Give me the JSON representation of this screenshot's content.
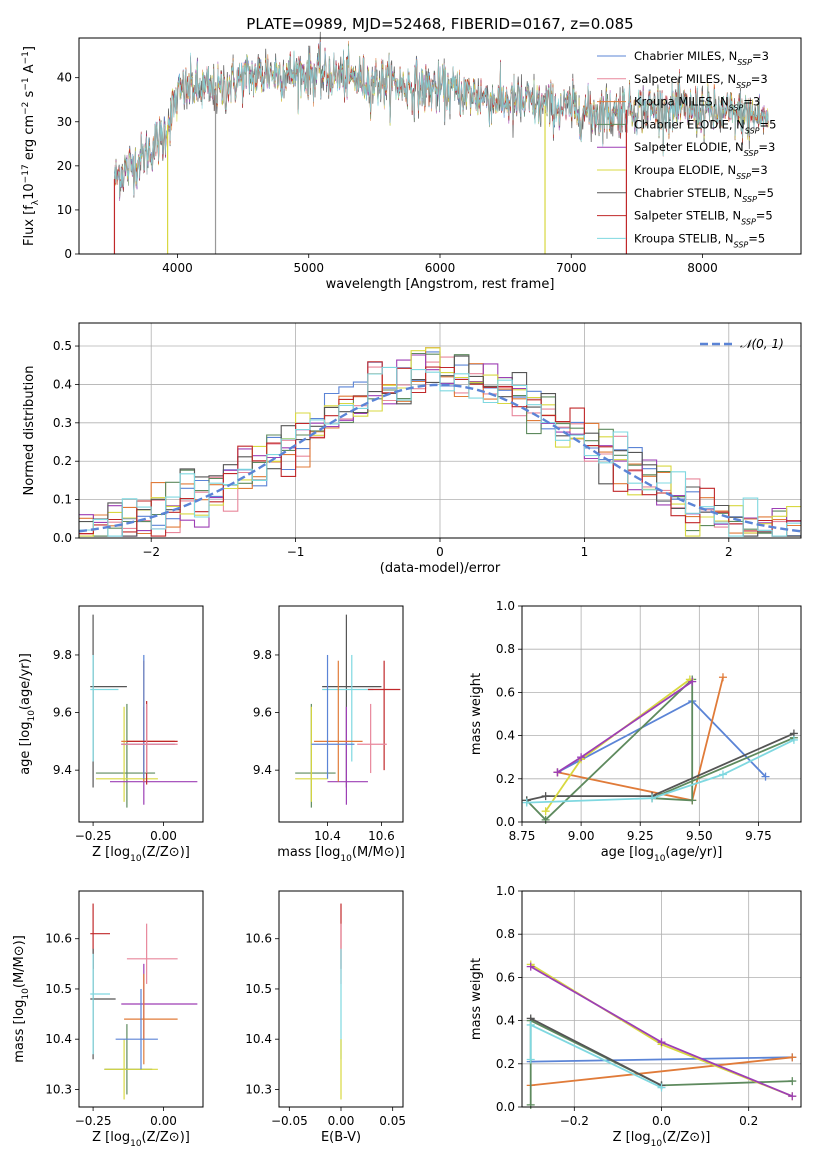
{
  "title": "PLATE=0989, MJD=52468, FIBERID=0167, z=0.085",
  "colors": {
    "Chabrier MILES": "#5b84d6",
    "Salpeter MILES": "#e8879b",
    "Kroupa MILES": "#e07b39",
    "Chabrier ELODIE": "#5e8a5e",
    "Salpeter ELODIE": "#9d3fb5",
    "Kroupa ELODIE": "#d8d840",
    "Chabrier STELIB": "#555555",
    "Salpeter STELIB": "#c0282a",
    "Kroupa STELIB": "#7fd8e0"
  },
  "chart_data": [
    {
      "id": "spectrum",
      "type": "line",
      "title": "PLATE=0989, MJD=52468, FIBERID=0167, z=0.085",
      "xlabel": "wavelength [Angstrom, rest frame]",
      "ylabel": "Flux [f_λ10^-17 erg cm^-2 s^-1 A^-1]",
      "xlim": [
        3250,
        8750
      ],
      "ylim": [
        0,
        49
      ],
      "xticks": [
        4000,
        5000,
        6000,
        7000,
        8000
      ],
      "yticks": [
        0,
        10,
        20,
        30,
        40
      ],
      "grid": false,
      "legend": "top-right",
      "legend_entries": [
        {
          "base": "Chabrier MILES, N",
          "sub": "SSP",
          "tail": "=3"
        },
        {
          "base": "Salpeter MILES, N",
          "sub": "SSP",
          "tail": "=3"
        },
        {
          "base": "Kroupa MILES, N",
          "sub": "SSP",
          "tail": "=3"
        },
        {
          "base": "Chabrier ELODIE, N",
          "sub": "SSP",
          "tail": "=5"
        },
        {
          "base": "Salpeter ELODIE, N",
          "sub": "SSP",
          "tail": "=3"
        },
        {
          "base": "Kroupa ELODIE, N",
          "sub": "SSP",
          "tail": "=3"
        },
        {
          "base": "Chabrier STELIB, N",
          "sub": "SSP",
          "tail": "=5"
        },
        {
          "base": "Salpeter STELIB, N",
          "sub": "SSP",
          "tail": "=5"
        },
        {
          "base": "Kroupa STELIB, N",
          "sub": "SSP",
          "tail": "=5"
        }
      ],
      "continuum": {
        "x": [
          3520,
          3600,
          3700,
          3800,
          3900,
          4000,
          4100,
          4300,
          4500,
          4700,
          4900,
          5100,
          5300,
          5500,
          5800,
          6100,
          6400,
          6700,
          7000,
          7200,
          7500,
          7800,
          8100,
          8500
        ],
        "y": [
          17,
          19,
          21,
          24,
          27,
          36,
          38,
          37,
          40,
          41,
          41,
          41,
          40,
          39,
          38,
          37,
          35,
          34,
          33,
          32,
          33,
          33,
          32,
          31
        ]
      },
      "spikes": [
        {
          "x": 3520,
          "y": 0,
          "color": "#c0282a"
        },
        {
          "x": 3925,
          "y": 0,
          "color": "#d8d840"
        },
        {
          "x": 4290,
          "y": 0,
          "color": "#999999"
        },
        {
          "x": 6800,
          "y": 0,
          "color": "#d8d840"
        },
        {
          "x": 7420,
          "y": 0,
          "color": "#c0282a"
        }
      ]
    },
    {
      "id": "residuals",
      "type": "histogram",
      "xlabel": "(data-model)/error",
      "ylabel": "Normed distribution",
      "xlim": [
        -2.5,
        2.5
      ],
      "ylim": [
        0,
        0.56
      ],
      "xticks": [
        -2,
        -1,
        0,
        1,
        2
      ],
      "yticks": [
        0.0,
        0.1,
        0.2,
        0.3,
        0.4,
        0.5
      ],
      "grid": true,
      "legend": "top-right",
      "legend_label": "𝒩(0, 1)",
      "bin_width": 0.1,
      "reference_curve": "normal(0,1)"
    },
    {
      "id": "z-age",
      "type": "errorbar",
      "xlabel": "Z [log10(Z/Z⊙)]",
      "ylabel": "age  [log10(age/yr)]",
      "xlim": [
        -0.3,
        0.14
      ],
      "ylim": [
        9.22,
        9.97
      ],
      "xticks": [
        -0.25,
        0.0
      ],
      "yticks": [
        9.4,
        9.6,
        9.8
      ],
      "points": [
        {
          "x": -0.25,
          "y": 9.69,
          "xlo": -0.26,
          "xhi": -0.13,
          "ylo": 9.34,
          "yhi": 9.94,
          "color": "#555555"
        },
        {
          "x": -0.25,
          "y": 9.68,
          "xlo": -0.26,
          "xhi": -0.16,
          "ylo": 9.43,
          "yhi": 9.8,
          "color": "#7fd8e0"
        },
        {
          "x": -0.13,
          "y": 9.39,
          "xlo": -0.24,
          "xhi": -0.03,
          "ylo": 9.27,
          "yhi": 9.63,
          "color": "#5e8a5e"
        },
        {
          "x": -0.14,
          "y": 9.37,
          "xlo": -0.24,
          "xhi": -0.02,
          "ylo": 9.29,
          "yhi": 9.62,
          "color": "#d8d840"
        },
        {
          "x": -0.07,
          "y": 9.36,
          "xlo": -0.19,
          "xhi": 0.12,
          "ylo": 9.28,
          "yhi": 9.62,
          "color": "#9d3fb5"
        },
        {
          "x": -0.07,
          "y": 9.5,
          "xlo": -0.15,
          "xhi": 0.04,
          "ylo": 9.36,
          "yhi": 9.78,
          "color": "#e07b39"
        },
        {
          "x": -0.07,
          "y": 9.49,
          "xlo": -0.15,
          "xhi": 0.04,
          "ylo": 9.37,
          "yhi": 9.8,
          "color": "#5b84d6"
        },
        {
          "x": -0.06,
          "y": 9.5,
          "xlo": -0.13,
          "xhi": 0.05,
          "ylo": 9.35,
          "yhi": 9.64,
          "color": "#c0282a"
        },
        {
          "x": -0.06,
          "y": 9.49,
          "xlo": -0.15,
          "xhi": 0.05,
          "ylo": 9.39,
          "yhi": 9.63,
          "color": "#e8879b"
        }
      ]
    },
    {
      "id": "mass-age",
      "type": "errorbar",
      "xlabel": "mass [log10(M/M⊙)]",
      "ylabel": "",
      "xlim": [
        10.22,
        10.68
      ],
      "ylim": [
        9.22,
        9.97
      ],
      "xticks": [
        10.4,
        10.6
      ],
      "yticks": [
        9.4,
        9.6,
        9.8
      ],
      "points": [
        {
          "x": 10.47,
          "y": 9.69,
          "xlo": 10.38,
          "xhi": 10.6,
          "ylo": 9.34,
          "yhi": 9.94,
          "color": "#555555"
        },
        {
          "x": 10.49,
          "y": 9.68,
          "xlo": 10.38,
          "xhi": 10.57,
          "ylo": 9.43,
          "yhi": 9.8,
          "color": "#7fd8e0"
        },
        {
          "x": 10.34,
          "y": 9.39,
          "xlo": 10.28,
          "xhi": 10.43,
          "ylo": 9.27,
          "yhi": 9.63,
          "color": "#5e8a5e"
        },
        {
          "x": 10.34,
          "y": 9.37,
          "xlo": 10.28,
          "xhi": 10.4,
          "ylo": 9.29,
          "yhi": 9.62,
          "color": "#d8d840"
        },
        {
          "x": 10.47,
          "y": 9.36,
          "xlo": 10.4,
          "xhi": 10.55,
          "ylo": 9.28,
          "yhi": 9.62,
          "color": "#9d3fb5"
        },
        {
          "x": 10.44,
          "y": 9.5,
          "xlo": 10.35,
          "xhi": 10.53,
          "ylo": 9.36,
          "yhi": 9.78,
          "color": "#e07b39"
        },
        {
          "x": 10.4,
          "y": 9.49,
          "xlo": 10.34,
          "xhi": 10.5,
          "ylo": 9.37,
          "yhi": 9.8,
          "color": "#5b84d6"
        },
        {
          "x": 10.61,
          "y": 9.68,
          "xlo": 10.55,
          "xhi": 10.67,
          "ylo": 9.4,
          "yhi": 9.78,
          "color": "#c0282a"
        },
        {
          "x": 10.56,
          "y": 9.49,
          "xlo": 10.51,
          "xhi": 10.62,
          "ylo": 9.39,
          "yhi": 9.63,
          "color": "#e8879b"
        }
      ]
    },
    {
      "id": "age-weight",
      "type": "line",
      "xlabel": "age  [log10(age/yr)]",
      "ylabel": "mass weight",
      "xlim": [
        8.75,
        9.93
      ],
      "ylim": [
        0,
        1.0
      ],
      "xticks": [
        8.75,
        9.0,
        9.25,
        9.5,
        9.75
      ],
      "yticks": [
        0.0,
        0.2,
        0.4,
        0.6,
        0.8,
        1.0
      ],
      "grid": true,
      "series": [
        {
          "color": "#5b84d6",
          "x": [
            8.9,
            9.47,
            9.78
          ],
          "y": [
            0.23,
            0.56,
            0.21
          ]
        },
        {
          "color": "#e07b39",
          "x": [
            8.9,
            9.47,
            9.6
          ],
          "y": [
            0.23,
            0.1,
            0.67
          ]
        },
        {
          "color": "#5e8a5e",
          "x": [
            8.77,
            8.85,
            9.47,
            9.47,
            9.3,
            9.9
          ],
          "y": [
            0.1,
            0.01,
            0.66,
            0.1,
            0.11,
            0.39
          ]
        },
        {
          "color": "#555555",
          "x": [
            8.77,
            8.85,
            9.3,
            9.9
          ],
          "y": [
            0.1,
            0.12,
            0.12,
            0.41
          ]
        },
        {
          "color": "#d8d840",
          "x": [
            8.85,
            9.0,
            9.46
          ],
          "y": [
            0.05,
            0.29,
            0.66
          ]
        },
        {
          "color": "#7fd8e0",
          "x": [
            8.77,
            9.3,
            9.6,
            9.9
          ],
          "y": [
            0.09,
            0.11,
            0.22,
            0.38
          ]
        },
        {
          "color": "#9d3fb5",
          "x": [
            8.9,
            9.0,
            9.47
          ],
          "y": [
            0.23,
            0.3,
            0.65
          ]
        }
      ]
    },
    {
      "id": "z-mass",
      "type": "errorbar",
      "xlabel": "Z [log10(Z/Z⊙)]",
      "ylabel": "mass [log10(M/M⊙)]",
      "xlim": [
        -0.3,
        0.14
      ],
      "ylim": [
        10.265,
        10.695
      ],
      "xticks": [
        -0.25,
        0.0
      ],
      "yticks": [
        10.3,
        10.4,
        10.5,
        10.6
      ],
      "points": [
        {
          "x": -0.25,
          "y": 10.61,
          "xlo": -0.26,
          "xhi": -0.19,
          "ylo": 10.54,
          "yhi": 10.67,
          "color": "#c0282a"
        },
        {
          "x": -0.25,
          "y": 10.48,
          "xlo": -0.26,
          "xhi": -0.17,
          "ylo": 10.36,
          "yhi": 10.58,
          "color": "#555555"
        },
        {
          "x": -0.25,
          "y": 10.49,
          "xlo": -0.26,
          "xhi": -0.19,
          "ylo": 10.37,
          "yhi": 10.57,
          "color": "#7fd8e0"
        },
        {
          "x": -0.13,
          "y": 10.34,
          "xlo": -0.21,
          "xhi": -0.04,
          "ylo": 10.29,
          "yhi": 10.43,
          "color": "#5e8a5e"
        },
        {
          "x": -0.14,
          "y": 10.34,
          "xlo": -0.21,
          "xhi": -0.02,
          "ylo": 10.28,
          "yhi": 10.4,
          "color": "#d8d840"
        },
        {
          "x": -0.07,
          "y": 10.47,
          "xlo": -0.15,
          "xhi": 0.12,
          "ylo": 10.4,
          "yhi": 10.55,
          "color": "#9d3fb5"
        },
        {
          "x": -0.07,
          "y": 10.44,
          "xlo": -0.14,
          "xhi": 0.05,
          "ylo": 10.35,
          "yhi": 10.53,
          "color": "#e07b39"
        },
        {
          "x": -0.08,
          "y": 10.4,
          "xlo": -0.17,
          "xhi": -0.02,
          "ylo": 10.34,
          "yhi": 10.5,
          "color": "#5b84d6"
        },
        {
          "x": -0.06,
          "y": 10.56,
          "xlo": -0.13,
          "xhi": 0.05,
          "ylo": 10.51,
          "yhi": 10.63,
          "color": "#e8879b"
        }
      ]
    },
    {
      "id": "ebv-mass",
      "type": "errorbar",
      "xlabel": "E(B-V)",
      "ylabel": "",
      "xlim": [
        -0.06,
        0.06
      ],
      "ylim": [
        10.265,
        10.695
      ],
      "xticks": [
        -0.05,
        0.0,
        0.05
      ],
      "yticks": [
        10.3,
        10.4,
        10.5,
        10.6
      ],
      "points": [
        {
          "x": 0.0,
          "y": 10.61,
          "xlo": 0.0,
          "xhi": 0.0,
          "ylo": 10.54,
          "yhi": 10.67,
          "color": "#c0282a"
        },
        {
          "x": 0.0,
          "y": 10.56,
          "xlo": 0.0,
          "xhi": 0.0,
          "ylo": 10.51,
          "yhi": 10.63,
          "color": "#e8879b"
        },
        {
          "x": 0.0,
          "y": 10.48,
          "xlo": 0.0,
          "xhi": 0.0,
          "ylo": 10.36,
          "yhi": 10.58,
          "color": "#7fd8e0"
        },
        {
          "x": 0.0,
          "y": 10.34,
          "xlo": 0.0,
          "xhi": 0.0,
          "ylo": 10.28,
          "yhi": 10.4,
          "color": "#d8d840"
        }
      ]
    },
    {
      "id": "z-weight",
      "type": "line",
      "xlabel": "Z [log10(Z/Z⊙)]",
      "ylabel": "mass weight",
      "xlim": [
        -0.32,
        0.32
      ],
      "ylim": [
        0,
        1.0
      ],
      "xticks": [
        -0.2,
        0.0,
        0.2
      ],
      "yticks": [
        0.0,
        0.2,
        0.4,
        0.6,
        0.8,
        1.0
      ],
      "grid": true,
      "series": [
        {
          "color": "#5b84d6",
          "x": [
            -0.3,
            0.3
          ],
          "y": [
            0.21,
            0.23
          ]
        },
        {
          "color": "#e07b39",
          "x": [
            -0.3,
            0.3
          ],
          "y": [
            0.1,
            0.23
          ]
        },
        {
          "color": "#5e8a5e",
          "x": [
            -0.3,
            -0.3,
            0.0,
            0.3
          ],
          "y": [
            0.01,
            0.4,
            0.1,
            0.12
          ]
        },
        {
          "color": "#555555",
          "x": [
            -0.3,
            0.0
          ],
          "y": [
            0.41,
            0.1
          ]
        },
        {
          "color": "#d8d840",
          "x": [
            -0.3,
            0.0,
            0.3
          ],
          "y": [
            0.66,
            0.29,
            0.05
          ]
        },
        {
          "color": "#9d3fb5",
          "x": [
            -0.3,
            0.0,
            0.3
          ],
          "y": [
            0.65,
            0.3,
            0.05
          ]
        },
        {
          "color": "#7fd8e0",
          "x": [
            -0.3,
            -0.3,
            0.0
          ],
          "y": [
            0.22,
            0.38,
            0.09
          ]
        }
      ]
    }
  ]
}
